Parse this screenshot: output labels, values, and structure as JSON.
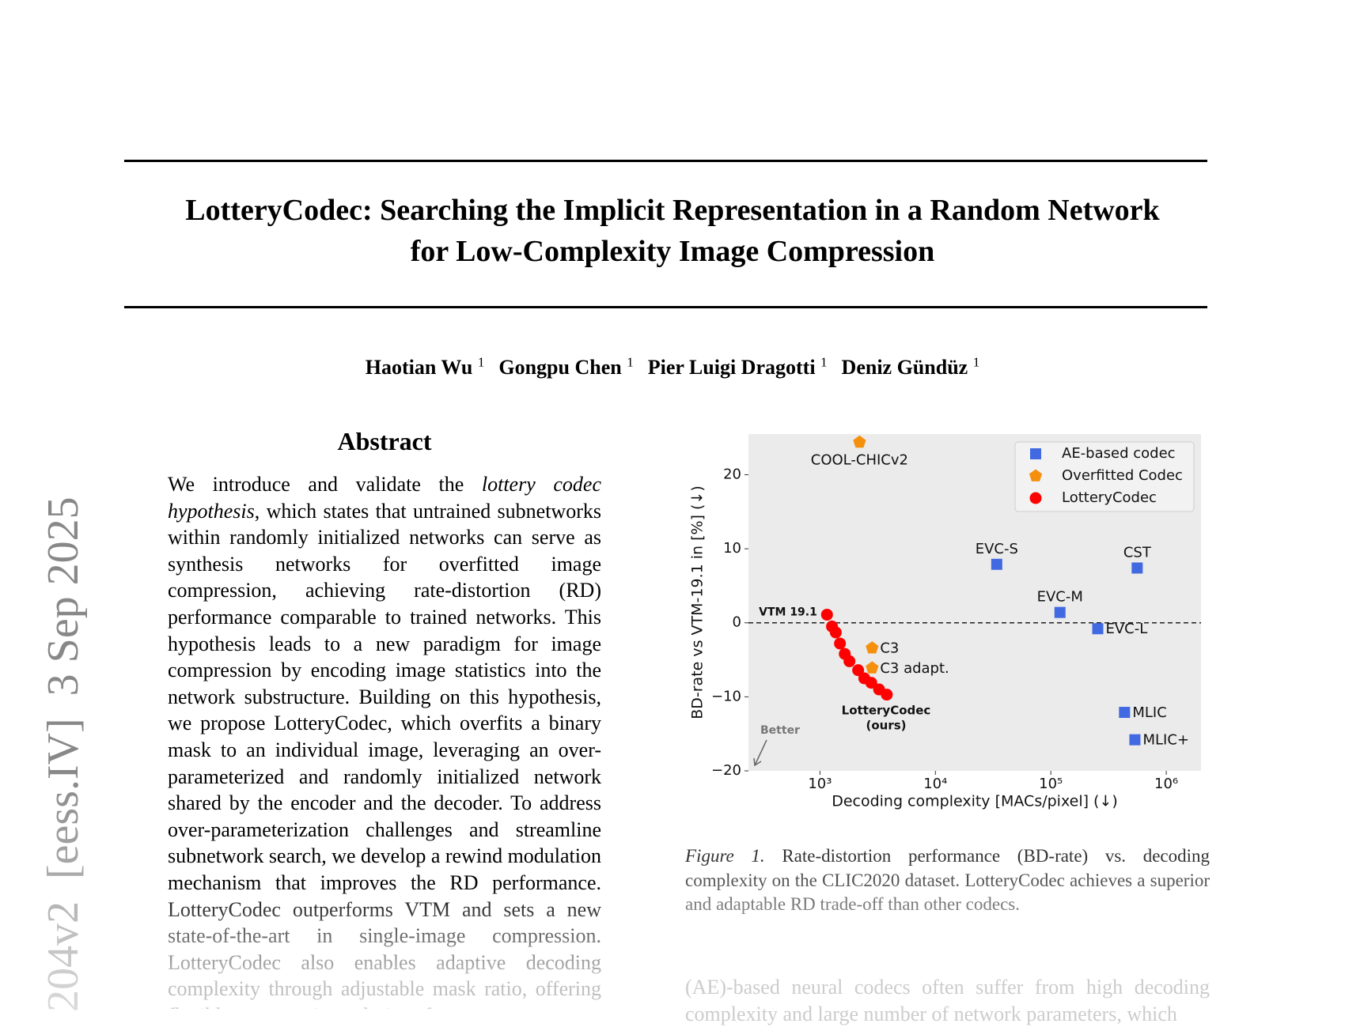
{
  "sidebar": "204v2  [eess.IV]  3 Sep 2025",
  "header": {
    "title": [
      "LotteryCodec: Searching the Implicit Representation in a Random Network",
      "for Low-Complexity Image Compression"
    ],
    "authors": [
      {
        "name": "Haotian Wu",
        "affiliation": "1"
      },
      {
        "name": "Gongpu Chen",
        "affiliation": "1"
      },
      {
        "name": "Pier Luigi Dragotti",
        "affiliation": "1"
      },
      {
        "name": "Deniz Gündüz",
        "affiliation": "1"
      }
    ]
  },
  "abstract": {
    "heading": "Abstract",
    "body": [
      "We introduce and validate the ",
      "lottery codec hypothesis",
      ", which states that untrained subnetworks within randomly initialized networks can serve as synthesis networks for overfitted image compression, achieving rate-distortion (RD) performance comparable to trained networks. This hypothesis leads to a new paradigm for image compression by encoding image statistics into the network substructure. Building on this hypothesis, we propose LotteryCodec, which overfits a binary mask to an individual image, leveraging an over-parameterized and randomly initialized network shared by the encoder and the decoder. To address over-parameterization challenges and streamline subnetwork search, we develop a rewind modulation mechanism that improves the RD performance. LotteryCodec outperforms VTM and sets a new state-of-the-art in single-image compression. LotteryCodec also enables adaptive decoding complexity through adjustable mask ratio, offering flexible compression solutions for"
    ]
  },
  "chart_data": {
    "type": "scatter",
    "xlabel": "Decoding complexity [MACs/pixel] (↓)",
    "ylabel": "BD-rate vs VTM-19.1 in [%] (↓)",
    "xscale": "log",
    "xlim": [
      240,
      2000000
    ],
    "ylim": [
      -20,
      25.5
    ],
    "xticks": [
      {
        "value": 1000,
        "label": "10³"
      },
      {
        "value": 10000,
        "label": "10⁴"
      },
      {
        "value": 100000,
        "label": "10⁵"
      },
      {
        "value": 1000000,
        "label": "10⁶"
      }
    ],
    "yticks": [
      {
        "value": -20,
        "label": "−20"
      },
      {
        "value": -10,
        "label": "−10"
      },
      0,
      10,
      20
    ],
    "grid": false,
    "legend": "upper right",
    "reference_line": {
      "y": 0,
      "label": "VTM 19.1"
    },
    "annotations": [
      "LotteryCodec",
      "(ours)",
      "Better"
    ],
    "series": [
      {
        "name": "AE-based codec",
        "color": "#4169e1",
        "marker": "square",
        "x": [
          34000,
          120000,
          255000,
          560000,
          435000,
          535000
        ],
        "values": [
          7.9,
          1.4,
          -0.8,
          7.4,
          -12.1,
          -15.8
        ],
        "labels": [
          "EVC-S",
          "EVC-M",
          "EVC-L",
          "CST",
          "MLIC",
          "MLIC+"
        ]
      },
      {
        "name": "Overfitted Codec",
        "color": "#f5900f",
        "marker": "pentagon",
        "x": [
          2200,
          2830,
          2830
        ],
        "values": [
          24.4,
          -3.4,
          -6.1
        ],
        "labels": [
          "COOL-CHICv2",
          "C3",
          "C3 adapt."
        ]
      },
      {
        "name": "LotteryCodec",
        "color": "#ff0000",
        "marker": "circle",
        "x": [
          1150,
          1270,
          1370,
          1490,
          1640,
          1800,
          2140,
          2420,
          2780,
          3250,
          3790
        ],
        "values": [
          1.1,
          -0.5,
          -1.3,
          -2.8,
          -4.2,
          -5.2,
          -6.4,
          -7.5,
          -8.1,
          -9.0,
          -9.7
        ]
      }
    ]
  },
  "figure": {
    "label": "Figure 1.",
    "caption": "Rate-distortion performance (BD-rate) vs. decoding complexity on the CLIC2020 dataset. LotteryCodec achieves a superior and adaptable RD trade-off than other codecs."
  },
  "body": "(AE)-based neural codecs often suffer from high decoding complexity and large number of network parameters, which"
}
